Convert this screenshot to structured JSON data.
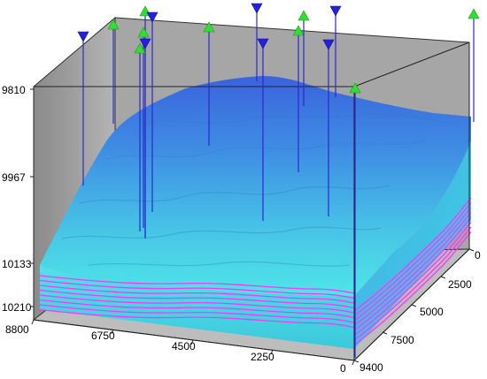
{
  "depth_axis": {
    "ticks": [
      "9810",
      "9967",
      "10133",
      "10210"
    ]
  },
  "x_axis": {
    "ticks": [
      "8800",
      "6750",
      "4500",
      "2250",
      "0"
    ]
  },
  "y_axis": {
    "ticks": [
      "0",
      "2500",
      "5000",
      "7500",
      "9400"
    ]
  },
  "wells": {
    "producer_symbol": "green-triangle-up",
    "injector_symbol": "blue-triangle-down",
    "producer_color": "#33dd33",
    "injector_color": "#2222dd"
  },
  "colors": {
    "surface_top": "#3a6fe0",
    "surface_mid": "#4fb3e6",
    "surface_low": "#46e0e6",
    "layer_lines": "#ff33ff",
    "back_walls": "#a0a0a0",
    "floor": "#b8b8b8"
  }
}
